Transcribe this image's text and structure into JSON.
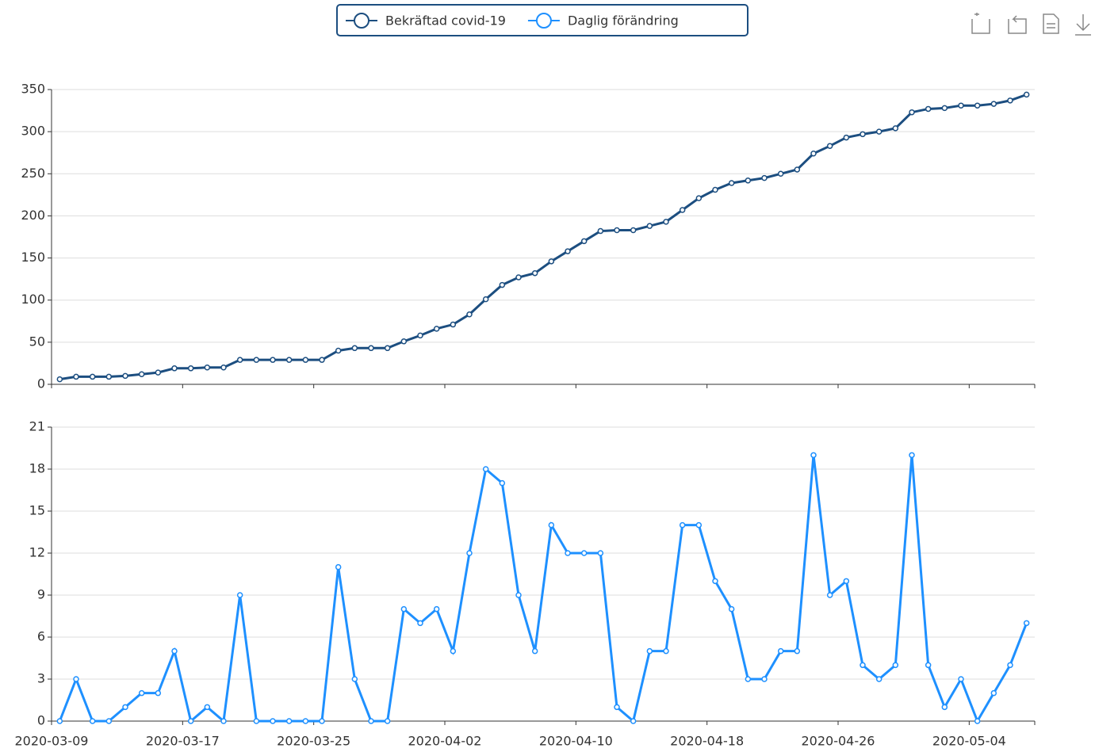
{
  "chart_data": [
    {
      "type": "line",
      "series": [
        {
          "name": "Bekräftad covid-19",
          "color": "#1c4e80",
          "values": [
            6,
            9,
            9,
            9,
            10,
            12,
            14,
            19,
            19,
            20,
            20,
            29,
            29,
            29,
            29,
            29,
            29,
            40,
            43,
            43,
            43,
            51,
            58,
            66,
            71,
            83,
            101,
            118,
            127,
            132,
            146,
            158,
            170,
            182,
            183,
            183,
            188,
            193,
            207,
            221,
            231,
            239,
            242,
            245,
            250,
            255,
            274,
            283,
            293,
            297,
            300,
            304,
            323,
            327,
            328,
            331,
            331,
            333,
            337,
            344
          ]
        }
      ],
      "ylim": [
        0,
        350
      ],
      "yticks": [
        0,
        50,
        100,
        150,
        200,
        250,
        300,
        350
      ],
      "grid": true
    },
    {
      "type": "line",
      "categories": [
        "2020-03-09",
        "2020-03-10",
        "2020-03-11",
        "2020-03-12",
        "2020-03-13",
        "2020-03-14",
        "2020-03-15",
        "2020-03-16",
        "2020-03-17",
        "2020-03-18",
        "2020-03-19",
        "2020-03-20",
        "2020-03-21",
        "2020-03-22",
        "2020-03-23",
        "2020-03-24",
        "2020-03-25",
        "2020-03-26",
        "2020-03-27",
        "2020-03-28",
        "2020-03-29",
        "2020-03-30",
        "2020-03-31",
        "2020-04-01",
        "2020-04-02",
        "2020-04-03",
        "2020-04-04",
        "2020-04-05",
        "2020-04-06",
        "2020-04-07",
        "2020-04-08",
        "2020-04-09",
        "2020-04-10",
        "2020-04-11",
        "2020-04-12",
        "2020-04-13",
        "2020-04-14",
        "2020-04-15",
        "2020-04-16",
        "2020-04-17",
        "2020-04-18",
        "2020-04-19",
        "2020-04-20",
        "2020-04-21",
        "2020-04-22",
        "2020-04-23",
        "2020-04-24",
        "2020-04-25",
        "2020-04-26",
        "2020-04-27",
        "2020-04-28",
        "2020-04-29",
        "2020-04-30",
        "2020-05-01",
        "2020-05-02",
        "2020-05-03",
        "2020-05-04",
        "2020-05-05",
        "2020-05-06",
        "2020-05-07"
      ],
      "series": [
        {
          "name": "Daglig förändring",
          "color": "#1e90ff",
          "values": [
            0,
            3,
            0,
            0,
            1,
            2,
            2,
            5,
            0,
            1,
            0,
            9,
            0,
            0,
            0,
            0,
            0,
            11,
            3,
            0,
            0,
            8,
            7,
            8,
            5,
            12,
            18,
            17,
            9,
            5,
            14,
            12,
            12,
            12,
            1,
            0,
            5,
            5,
            14,
            14,
            10,
            8,
            3,
            3,
            5,
            5,
            19,
            9,
            10,
            4,
            3,
            4,
            19,
            4,
            1,
            3,
            0,
            2,
            4,
            7
          ]
        }
      ],
      "ylim": [
        0,
        21
      ],
      "yticks": [
        0,
        3,
        6,
        9,
        12,
        15,
        18,
        21
      ],
      "grid": true
    }
  ]
}
